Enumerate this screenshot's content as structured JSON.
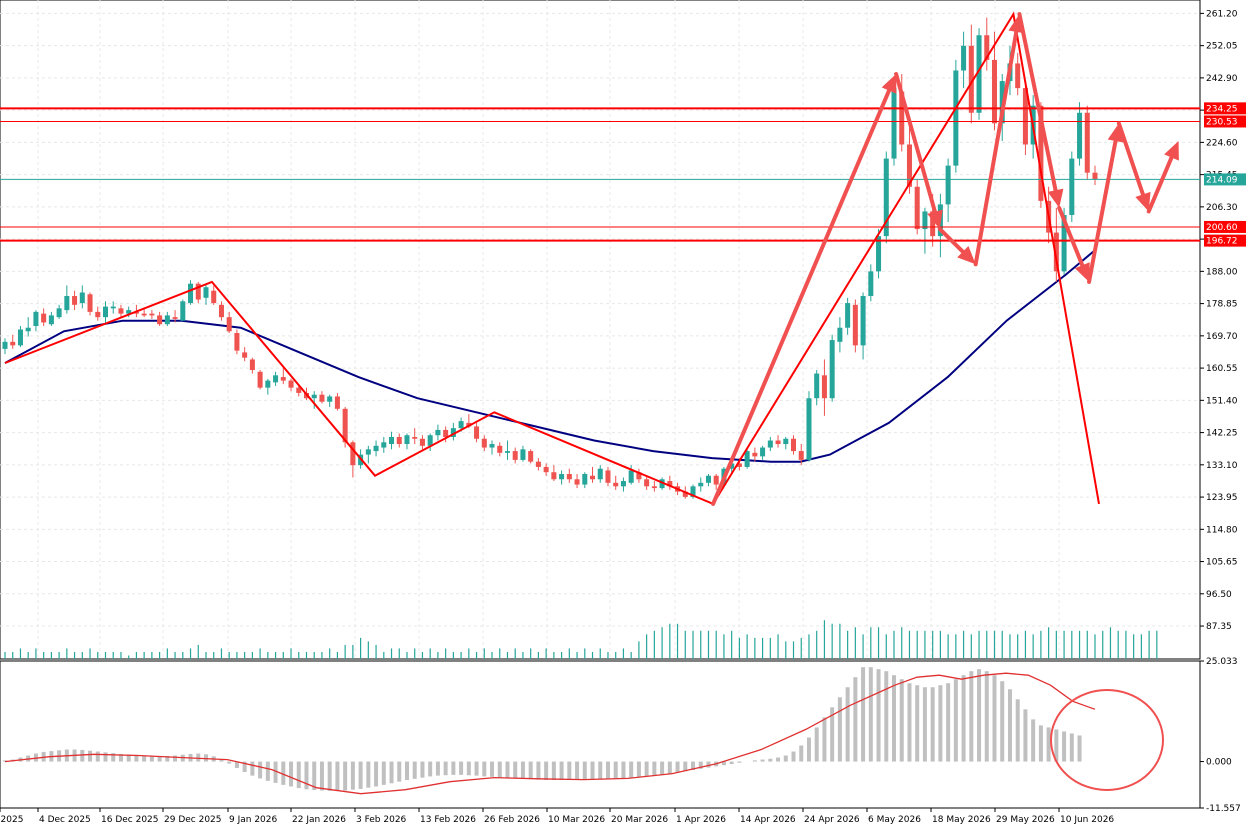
{
  "colors": {
    "bull": "#26a69a",
    "bear": "#ef5350",
    "ma": "#000080",
    "level": "#ff0000",
    "current": "#26a69a",
    "arrow": "#f05050",
    "hist": "#c0c0c0",
    "signal": "#e03030",
    "grid": "#e8e8e8"
  },
  "axis": {
    "price_ticks": [
      "261.20",
      "252.05",
      "242.90",
      "233.75",
      "224.60",
      "215.45",
      "206.30",
      "197.15",
      "188.00",
      "178.85",
      "169.70",
      "160.55",
      "151.40",
      "142.25",
      "133.10",
      "123.95",
      "114.80",
      "105.65",
      "96.50",
      "87.35"
    ],
    "macd_ticks": [
      "25.033",
      "0.000",
      "-11.557"
    ],
    "date_labels": [
      "r 2025",
      "4 Dec 2025",
      "16 Dec 2025",
      "29 Dec 2025",
      "9 Jan 2026",
      "22 Jan 2026",
      "3 Feb 2026",
      "13 Feb 2026",
      "26 Feb 2026",
      "10 Mar 2026",
      "20 Mar 2026",
      "1 Apr 2026",
      "14 Apr 2026",
      "24 Apr 2026",
      "6 May 2026",
      "18 May 2026",
      "29 May 2026",
      "10 Jun 2026"
    ]
  },
  "levels": [
    {
      "value": 234.25,
      "label": "234.25",
      "thick": true
    },
    {
      "value": 230.53,
      "label": "230.53",
      "thick": false
    },
    {
      "value": 200.6,
      "label": "200.60",
      "thick": false
    },
    {
      "value": 196.72,
      "label": "196.72",
      "thick": true
    }
  ],
  "current_price": {
    "value": 214.09,
    "label": "214.09"
  },
  "chart_data": {
    "type": "candlestick",
    "ylim": [
      78,
      265
    ],
    "macd_ylim": [
      -11.557,
      25.033
    ],
    "candles": [
      [
        166.0,
        169.0,
        164.5,
        168.0
      ],
      [
        168.0,
        170.0,
        166.0,
        167.0
      ],
      [
        167.0,
        172.5,
        166.5,
        171.5
      ],
      [
        171.0,
        175.0,
        169.5,
        172.0
      ],
      [
        172.5,
        177.0,
        171.0,
        176.5
      ],
      [
        176.0,
        177.5,
        172.5,
        173.5
      ],
      [
        173.0,
        176.5,
        172.5,
        175.5
      ],
      [
        175.0,
        178.5,
        174.5,
        177.5
      ],
      [
        177.0,
        184.0,
        176.0,
        181.0
      ],
      [
        181.0,
        182.5,
        177.0,
        178.5
      ],
      [
        179.0,
        184.0,
        177.5,
        182.0
      ],
      [
        181.5,
        182.0,
        175.5,
        176.5
      ],
      [
        176.5,
        178.0,
        174.0,
        175.0
      ],
      [
        175.0,
        179.5,
        173.0,
        178.0
      ],
      [
        177.5,
        179.5,
        176.0,
        178.0
      ],
      [
        177.5,
        178.5,
        175.0,
        176.0
      ],
      [
        176.0,
        178.0,
        175.0,
        177.0
      ],
      [
        176.5,
        178.5,
        175.0,
        176.0
      ],
      [
        176.0,
        177.5,
        175.0,
        175.5
      ],
      [
        176.0,
        177.0,
        174.5,
        175.5
      ],
      [
        175.5,
        176.5,
        172.5,
        173.0
      ],
      [
        173.0,
        176.5,
        172.5,
        175.5
      ],
      [
        175.0,
        177.0,
        173.5,
        174.5
      ],
      [
        174.0,
        180.0,
        174.0,
        179.5
      ],
      [
        179.0,
        185.5,
        178.5,
        184.5
      ],
      [
        184.5,
        185.0,
        179.0,
        180.0
      ],
      [
        180.5,
        184.5,
        178.5,
        183.5
      ],
      [
        182.5,
        184.0,
        178.5,
        179.0
      ],
      [
        178.5,
        179.5,
        174.0,
        175.0
      ],
      [
        175.0,
        176.5,
        170.5,
        171.0
      ],
      [
        170.5,
        171.5,
        164.5,
        165.5
      ],
      [
        165.0,
        166.5,
        162.5,
        163.5
      ],
      [
        163.0,
        163.5,
        159.0,
        160.0
      ],
      [
        159.5,
        160.0,
        154.5,
        155.0
      ],
      [
        155.0,
        157.5,
        153.0,
        157.0
      ],
      [
        156.5,
        159.5,
        155.5,
        158.5
      ],
      [
        158.0,
        160.5,
        156.0,
        157.0
      ],
      [
        157.0,
        157.5,
        154.0,
        155.0
      ],
      [
        155.0,
        156.0,
        152.5,
        153.5
      ],
      [
        153.5,
        155.0,
        151.5,
        152.0
      ],
      [
        152.0,
        154.0,
        149.0,
        153.0
      ],
      [
        153.0,
        154.0,
        150.5,
        151.0
      ],
      [
        151.0,
        153.0,
        149.5,
        152.5
      ],
      [
        152.5,
        153.5,
        148.5,
        149.0
      ],
      [
        149.0,
        149.5,
        138.0,
        139.5
      ],
      [
        139.5,
        140.0,
        129.5,
        133.0
      ],
      [
        133.0,
        137.5,
        132.0,
        136.0
      ],
      [
        136.0,
        138.5,
        133.5,
        137.5
      ],
      [
        137.0,
        140.0,
        135.5,
        138.5
      ],
      [
        138.0,
        141.0,
        136.5,
        139.5
      ],
      [
        139.0,
        142.5,
        137.5,
        141.0
      ],
      [
        141.0,
        142.0,
        138.0,
        139.0
      ],
      [
        139.0,
        142.0,
        137.5,
        141.5
      ],
      [
        141.0,
        143.5,
        139.0,
        140.5
      ],
      [
        140.5,
        141.5,
        137.5,
        138.5
      ],
      [
        138.5,
        142.0,
        137.0,
        141.5
      ],
      [
        141.5,
        144.5,
        140.0,
        143.0
      ],
      [
        143.0,
        144.0,
        139.5,
        141.0
      ],
      [
        141.0,
        145.0,
        140.0,
        143.5
      ],
      [
        143.5,
        146.5,
        142.5,
        145.5
      ],
      [
        145.0,
        147.5,
        143.5,
        144.0
      ],
      [
        144.0,
        145.0,
        139.5,
        140.5
      ],
      [
        140.5,
        141.5,
        137.0,
        138.0
      ],
      [
        138.0,
        140.0,
        136.0,
        139.0
      ],
      [
        138.5,
        139.5,
        135.5,
        136.5
      ],
      [
        136.5,
        140.0,
        134.5,
        137.0
      ],
      [
        137.0,
        138.0,
        133.5,
        134.5
      ],
      [
        134.5,
        138.5,
        134.0,
        137.5
      ],
      [
        137.0,
        137.5,
        133.5,
        134.0
      ],
      [
        134.0,
        135.0,
        131.5,
        132.5
      ],
      [
        132.5,
        133.5,
        130.0,
        131.0
      ],
      [
        131.0,
        133.0,
        128.5,
        129.0
      ],
      [
        129.0,
        131.5,
        127.5,
        130.5
      ],
      [
        130.5,
        132.0,
        128.0,
        129.0
      ],
      [
        129.0,
        130.5,
        126.5,
        127.5
      ],
      [
        127.5,
        131.0,
        126.5,
        130.5
      ],
      [
        130.0,
        132.5,
        128.0,
        129.0
      ],
      [
        129.0,
        133.0,
        128.0,
        132.0
      ],
      [
        131.5,
        132.5,
        127.0,
        128.0
      ],
      [
        128.0,
        130.0,
        126.0,
        127.0
      ],
      [
        127.0,
        129.5,
        125.5,
        128.5
      ],
      [
        128.0,
        133.0,
        127.5,
        131.5
      ],
      [
        131.0,
        132.0,
        128.0,
        129.0
      ],
      [
        129.0,
        130.0,
        126.0,
        127.0
      ],
      [
        127.0,
        128.5,
        125.5,
        126.5
      ],
      [
        126.5,
        129.5,
        126.0,
        129.0
      ],
      [
        128.5,
        130.0,
        126.0,
        127.0
      ],
      [
        127.0,
        128.0,
        124.5,
        125.5
      ],
      [
        125.5,
        127.0,
        123.5,
        124.0
      ],
      [
        124.0,
        127.5,
        123.5,
        127.0
      ],
      [
        127.0,
        129.5,
        125.5,
        128.0
      ],
      [
        128.0,
        130.5,
        127.0,
        130.0
      ],
      [
        130.0,
        130.5,
        126.0,
        127.5
      ],
      [
        127.5,
        132.5,
        127.0,
        132.0
      ],
      [
        132.0,
        134.5,
        130.5,
        133.5
      ],
      [
        133.5,
        135.0,
        131.5,
        132.5
      ],
      [
        132.5,
        137.5,
        132.0,
        137.0
      ],
      [
        136.5,
        138.0,
        134.0,
        135.5
      ],
      [
        135.5,
        138.5,
        134.5,
        138.0
      ],
      [
        138.0,
        141.0,
        137.0,
        140.0
      ],
      [
        140.0,
        141.5,
        138.0,
        139.0
      ],
      [
        139.0,
        141.0,
        137.5,
        140.5
      ],
      [
        140.5,
        141.5,
        136.0,
        137.0
      ],
      [
        137.0,
        139.0,
        133.0,
        134.5
      ],
      [
        134.5,
        154.0,
        134.0,
        152.0
      ],
      [
        152.0,
        160.0,
        150.0,
        159.0
      ],
      [
        158.5,
        163.0,
        147.0,
        152.0
      ],
      [
        152.0,
        170.0,
        151.0,
        168.5
      ],
      [
        168.0,
        175.0,
        165.0,
        172.0
      ],
      [
        172.0,
        180.5,
        170.0,
        179.0
      ],
      [
        178.5,
        180.0,
        165.0,
        167.0
      ],
      [
        167.0,
        182.0,
        163.0,
        181.0
      ],
      [
        181.0,
        190.0,
        179.5,
        188.0
      ],
      [
        188.0,
        200.0,
        186.0,
        198.0
      ],
      [
        198.0,
        222.0,
        196.0,
        220.0
      ],
      [
        220.0,
        242.0,
        218.0,
        240.0
      ],
      [
        239.0,
        244.0,
        222.0,
        224.0
      ],
      [
        224.0,
        232.0,
        210.0,
        212.0
      ],
      [
        212.0,
        214.0,
        198.5,
        200.0
      ],
      [
        200.0,
        206.0,
        193.0,
        205.0
      ],
      [
        205.0,
        210.0,
        195.0,
        198.0
      ],
      [
        198.0,
        210.0,
        192.0,
        207.0
      ],
      [
        207.0,
        220.0,
        202.0,
        218.0
      ],
      [
        218.0,
        248.0,
        216.0,
        245.0
      ],
      [
        245.0,
        256.0,
        240.0,
        252.0
      ],
      [
        252.0,
        258.0,
        230.0,
        233.0
      ],
      [
        233.0,
        257.0,
        231.0,
        255.0
      ],
      [
        255.0,
        260.0,
        245.0,
        248.0
      ],
      [
        248.0,
        256.0,
        228.0,
        230.0
      ],
      [
        230.0,
        244.0,
        225.0,
        242.0
      ],
      [
        242.0,
        252.0,
        238.0,
        247.0
      ],
      [
        247.0,
        250.0,
        238.0,
        240.0
      ],
      [
        240.0,
        242.0,
        221.0,
        224.0
      ],
      [
        224.0,
        238.0,
        220.0,
        235.0
      ],
      [
        235.0,
        236.0,
        206.0,
        208.0
      ],
      [
        208.0,
        212.0,
        196.0,
        199.0
      ],
      [
        199.0,
        206.0,
        185.0,
        188.0
      ],
      [
        188.0,
        206.0,
        187.0,
        204.0
      ],
      [
        204.0,
        222.0,
        202.0,
        220.0
      ],
      [
        220.0,
        236.0,
        218.0,
        233.0
      ],
      [
        233.0,
        235.0,
        214.0,
        216.0
      ],
      [
        216.0,
        218.0,
        212.5,
        214.09
      ]
    ],
    "ma": [
      [
        0,
        162
      ],
      [
        20,
        171
      ],
      [
        40,
        174
      ],
      [
        60,
        174
      ],
      [
        80,
        172
      ],
      [
        100,
        165
      ],
      [
        120,
        158
      ],
      [
        140,
        152
      ],
      [
        160,
        148
      ],
      [
        180,
        144
      ],
      [
        200,
        140
      ],
      [
        220,
        137
      ],
      [
        240,
        135
      ],
      [
        260,
        134
      ],
      [
        270,
        134
      ],
      [
        280,
        136
      ],
      [
        300,
        145
      ],
      [
        320,
        158
      ],
      [
        340,
        174
      ],
      [
        360,
        187
      ],
      [
        370,
        194
      ]
    ],
    "volumes": [
      80,
      80,
      81,
      80,
      81,
      80,
      80,
      80,
      81,
      80,
      80,
      81,
      80,
      80,
      80,
      80,
      79,
      80,
      80,
      80,
      80,
      81,
      80,
      80,
      81,
      82,
      80,
      80,
      81,
      80,
      80,
      80,
      80,
      81,
      80,
      80,
      80,
      81,
      80,
      80,
      80,
      80,
      81,
      80,
      82,
      82,
      84,
      83,
      82,
      80,
      81,
      81,
      80,
      81,
      80,
      81,
      80,
      81,
      80,
      80,
      81,
      80,
      81,
      80,
      81,
      80,
      81,
      80,
      81,
      80,
      81,
      80,
      80,
      81,
      80,
      81,
      80,
      81,
      80,
      80,
      81,
      80,
      83,
      85,
      86,
      87,
      88,
      88,
      86,
      86,
      86,
      86,
      86,
      85,
      86,
      84,
      85,
      84,
      84,
      84,
      85,
      83,
      83,
      84,
      85,
      86,
      89,
      88,
      88,
      86,
      87,
      85,
      87,
      87,
      85,
      86,
      87,
      86,
      86,
      86,
      86,
      86,
      85,
      85,
      86,
      85,
      86,
      86,
      86,
      86,
      85,
      85,
      86,
      85,
      86,
      87,
      86,
      86,
      86,
      86,
      86,
      85,
      86,
      87,
      86,
      86,
      85,
      85,
      86,
      86
    ],
    "macd_hist": [
      0.3,
      0.5,
      1.0,
      1.5,
      2.0,
      2.4,
      2.6,
      2.8,
      3.0,
      3.0,
      2.9,
      2.7,
      2.5,
      2.3,
      2.1,
      1.9,
      1.7,
      1.5,
      1.4,
      1.3,
      1.3,
      1.4,
      1.5,
      1.7,
      1.9,
      2.0,
      1.8,
      1.3,
      0.5,
      -0.5,
      -1.6,
      -2.6,
      -3.5,
      -4.2,
      -4.8,
      -5.3,
      -5.8,
      -6.2,
      -6.6,
      -6.9,
      -7.1,
      -7.2,
      -7.3,
      -7.2,
      -7.2,
      -7.0,
      -6.8,
      -6.5,
      -6.2,
      -5.8,
      -5.4,
      -5.0,
      -4.6,
      -4.3,
      -4.0,
      -3.7,
      -3.5,
      -3.4,
      -3.3,
      -3.3,
      -3.4,
      -3.5,
      -3.7,
      -3.8,
      -4.0,
      -4.1,
      -4.2,
      -4.3,
      -4.4,
      -4.5,
      -4.6,
      -4.6,
      -4.6,
      -4.6,
      -4.5,
      -4.5,
      -4.4,
      -4.3,
      -4.2,
      -4.2,
      -4.1,
      -4.0,
      -3.8,
      -3.6,
      -3.4,
      -3.2,
      -3.0,
      -2.7,
      -2.4,
      -2.1,
      -1.8,
      -1.5,
      -1.2,
      -0.9,
      -0.6,
      -0.3,
      0.0,
      0.3,
      0.5,
      0.7,
      1.0,
      1.5,
      2.5,
      4.0,
      6.0,
      8.5,
      11.0,
      13.5,
      16.0,
      18.5,
      21.0,
      23.5,
      23.5,
      23.0,
      22.5,
      21.5,
      20.5,
      19.5,
      19.0,
      18.5,
      18.5,
      19.0,
      19.5,
      20.5,
      21.5,
      22.5,
      23.0,
      22.5,
      21.5,
      20.0,
      18.0,
      15.5,
      13.0,
      10.5,
      9.0,
      8.5,
      8.0,
      7.5,
      7.0,
      6.5
    ],
    "macd_signal": [
      [
        0,
        0
      ],
      [
        10,
        1.2
      ],
      [
        20,
        1.8
      ],
      [
        30,
        1.5
      ],
      [
        40,
        1.0
      ],
      [
        50,
        0.5
      ],
      [
        60,
        -2.0
      ],
      [
        70,
        -6.5
      ],
      [
        80,
        -8.0
      ],
      [
        90,
        -7.0
      ],
      [
        100,
        -5.0
      ],
      [
        110,
        -4.0
      ],
      [
        120,
        -4.3
      ],
      [
        130,
        -4.5
      ],
      [
        140,
        -4.2
      ],
      [
        150,
        -3.0
      ],
      [
        160,
        -0.5
      ],
      [
        170,
        3.0
      ],
      [
        180,
        8.0
      ],
      [
        190,
        14.0
      ],
      [
        200,
        19.0
      ],
      [
        205,
        21.0
      ],
      [
        210,
        21.5
      ],
      [
        215,
        20.5
      ],
      [
        220,
        21.5
      ],
      [
        225,
        22.0
      ],
      [
        230,
        21.5
      ],
      [
        235,
        19.0
      ],
      [
        240,
        15.0
      ],
      [
        245,
        13.0
      ]
    ],
    "zigzag": [
      [
        0,
        162
      ],
      [
        104,
        185
      ],
      [
        186,
        130
      ],
      [
        246,
        148
      ],
      [
        356,
        122
      ],
      [
        507,
        261
      ],
      [
        550,
        122
      ]
    ],
    "arrows": [
      [
        356,
        122,
        448,
        244
      ],
      [
        448,
        244,
        470,
        200
      ],
      [
        470,
        200,
        488,
        190
      ],
      [
        488,
        190,
        510,
        261
      ],
      [
        510,
        261,
        530,
        206
      ],
      [
        530,
        206,
        545,
        185
      ],
      [
        545,
        185,
        560,
        230
      ],
      [
        560,
        230,
        575,
        205
      ],
      [
        575,
        205,
        590,
        225
      ]
    ]
  }
}
